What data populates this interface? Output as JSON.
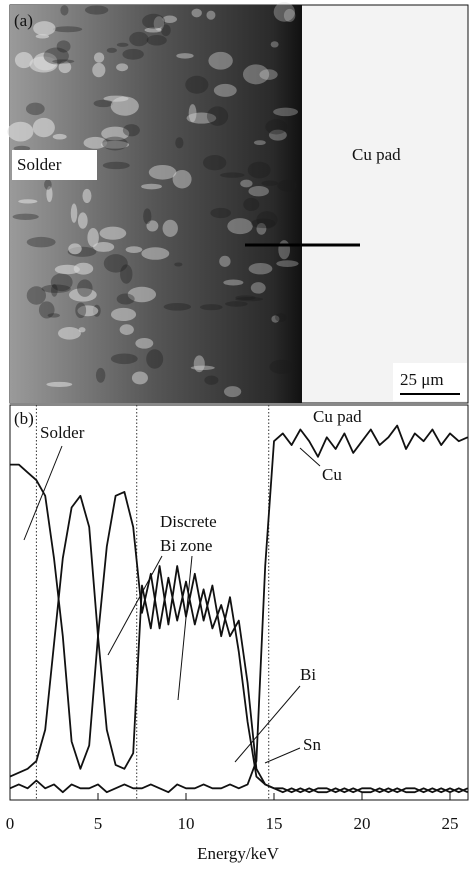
{
  "micrograph": {
    "panel_label": "(a)",
    "left_label": "Solder",
    "right_label": "Cu pad",
    "scale_bar": "25 μm"
  },
  "chart_data": {
    "type": "line",
    "panel_label": "(b)",
    "x_label": "Energy/keV",
    "xlim": [
      0,
      26
    ],
    "xticks": [
      0,
      5,
      10,
      15,
      20,
      25
    ],
    "ylim": [
      0,
      100
    ],
    "boundaries": [
      1.5,
      7.2,
      14.7
    ],
    "annotations": [
      "Cu pad",
      "Solder",
      "Discrete",
      "Bi zone",
      "Cu",
      "Bi",
      "Sn"
    ],
    "x": [
      0,
      0.5,
      1,
      1.5,
      2,
      2.5,
      3,
      3.5,
      4,
      4.5,
      5,
      5.5,
      6,
      6.5,
      7,
      7.5,
      8,
      8.5,
      9,
      9.5,
      10,
      10.5,
      11,
      11.5,
      12,
      12.5,
      13,
      13.5,
      14,
      14.5,
      15,
      15.5,
      16,
      16.5,
      17,
      17.5,
      18,
      18.5,
      19,
      19.5,
      20,
      20.5,
      21,
      21.5,
      22,
      22.5,
      23,
      23.5,
      24,
      24.5,
      25,
      25.5,
      26
    ],
    "series": [
      {
        "name": "Sn",
        "color": "#111111",
        "values": [
          86,
          86,
          84,
          82,
          78,
          62,
          42,
          15,
          8,
          14,
          42,
          65,
          78,
          79,
          70,
          48,
          58,
          44,
          57,
          46,
          56,
          45,
          54,
          44,
          50,
          42,
          46,
          30,
          8,
          4,
          3,
          3,
          2,
          3,
          2,
          3,
          3,
          2,
          3,
          2,
          3,
          3,
          2,
          3,
          2,
          3,
          3,
          2,
          3,
          2,
          3,
          2,
          3
        ]
      },
      {
        "name": "Bi",
        "color": "#111111",
        "values": [
          6,
          7,
          8,
          10,
          18,
          40,
          62,
          75,
          78,
          70,
          42,
          18,
          9,
          8,
          12,
          55,
          44,
          60,
          45,
          60,
          47,
          58,
          46,
          55,
          42,
          52,
          38,
          20,
          6,
          4,
          3,
          2,
          3,
          2,
          3,
          2,
          2,
          3,
          2,
          3,
          2,
          2,
          3,
          2,
          3,
          2,
          2,
          3,
          2,
          3,
          2,
          3,
          2
        ]
      },
      {
        "name": "Cu",
        "color": "#111111",
        "values": [
          3,
          4,
          3,
          5,
          3,
          4,
          2,
          4,
          3,
          3,
          4,
          2,
          3,
          4,
          3,
          3,
          4,
          3,
          2,
          4,
          3,
          3,
          4,
          3,
          3,
          4,
          3,
          4,
          10,
          60,
          92,
          94,
          91,
          95,
          92,
          88,
          93,
          90,
          94,
          89,
          92,
          95,
          91,
          93,
          96,
          90,
          94,
          92,
          95,
          91,
          94,
          92,
          93
        ]
      }
    ]
  }
}
